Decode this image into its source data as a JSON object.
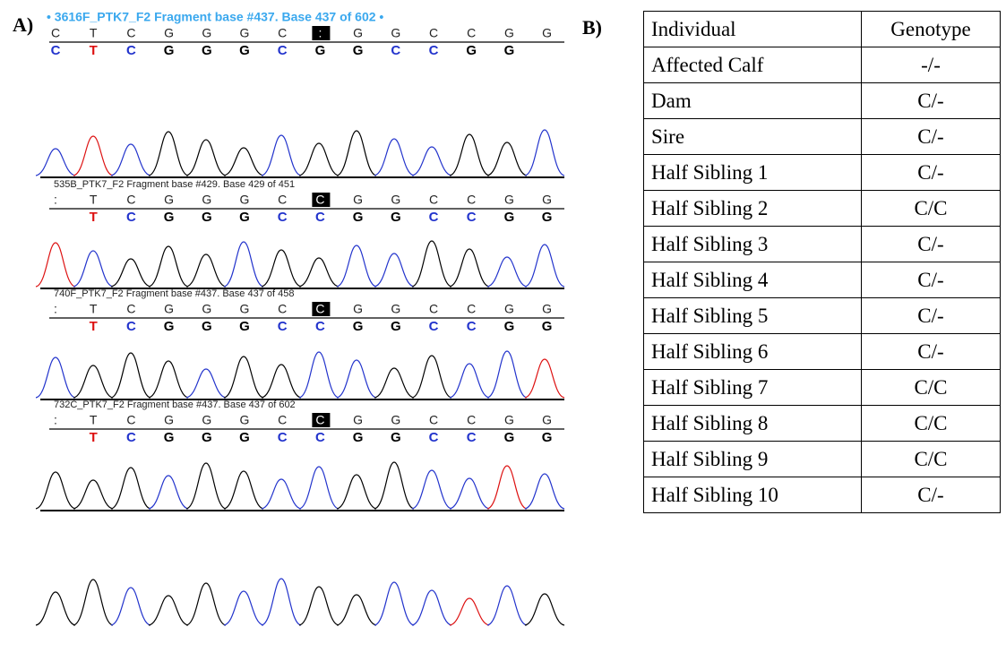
{
  "panel_a": {
    "label": "A)",
    "traces": [
      {
        "header": "• 3616F_PTK7_F2 Fragment base #437. Base 437 of 602 •",
        "bases_top": [
          "C",
          "T",
          "C",
          "G",
          "G",
          "G",
          "C",
          ":",
          "G",
          "G",
          "C",
          "C",
          "G",
          "G"
        ],
        "bases_bottom": [
          "C",
          "T",
          "C",
          "G",
          "G",
          "G",
          "C",
          "G",
          "G",
          "C",
          "C",
          "G",
          "G"
        ]
      },
      {
        "header": "535B_PTK7_F2 Fragment base #429. Base 429 of 451",
        "bases_top": [
          ":",
          "T",
          "C",
          "G",
          "G",
          "G",
          "C",
          "C",
          "G",
          "G",
          "C",
          "C",
          "G",
          "G"
        ],
        "bases_bottom": [
          "T",
          "C",
          "G",
          "G",
          "G",
          "C",
          "C",
          "G",
          "G",
          "C",
          "C",
          "G",
          "G"
        ]
      },
      {
        "header": "740F_PTK7_F2 Fragment base #437. Base 437 of 458",
        "bases_top": [
          ":",
          "T",
          "C",
          "G",
          "G",
          "G",
          "C",
          "C",
          "G",
          "G",
          "C",
          "C",
          "G",
          "G"
        ],
        "bases_bottom": [
          "T",
          "C",
          "G",
          "G",
          "G",
          "C",
          "C",
          "G",
          "G",
          "C",
          "C",
          "G",
          "G"
        ]
      },
      {
        "header": "732C_PTK7_F2 Fragment base #437. Base 437 of 602",
        "bases_top": [
          ":",
          "T",
          "C",
          "G",
          "G",
          "G",
          "C",
          "C",
          "G",
          "G",
          "C",
          "C",
          "G",
          "G"
        ],
        "bases_bottom": [
          "T",
          "C",
          "G",
          "G",
          "G",
          "C",
          "C",
          "G",
          "G",
          "C",
          "C",
          "G",
          "G"
        ]
      }
    ]
  },
  "panel_b": {
    "label": "B)",
    "table": {
      "header": [
        "Individual",
        "Genotype"
      ],
      "rows": [
        [
          "Affected Calf",
          "-/-"
        ],
        [
          "Dam",
          "C/-"
        ],
        [
          "Sire",
          "C/-"
        ],
        [
          "Half Sibling 1",
          "C/-"
        ],
        [
          "Half Sibling 2",
          "C/C"
        ],
        [
          "Half Sibling 3",
          "C/-"
        ],
        [
          "Half Sibling 4",
          "C/-"
        ],
        [
          "Half Sibling 5",
          "C/-"
        ],
        [
          "Half Sibling 6",
          "C/-"
        ],
        [
          "Half Sibling 7",
          "C/C"
        ],
        [
          "Half Sibling 8",
          "C/C"
        ],
        [
          "Half Sibling 9",
          "C/C"
        ],
        [
          "Half Sibling 10",
          "C/-"
        ]
      ]
    }
  }
}
